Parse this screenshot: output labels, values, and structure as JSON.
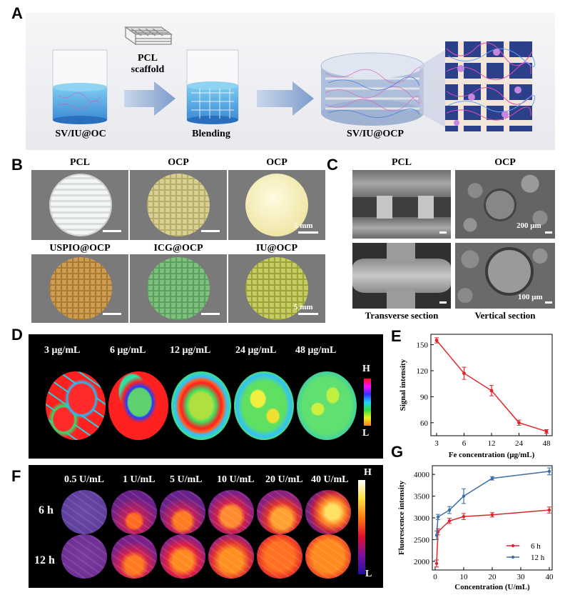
{
  "panels": {
    "A": {
      "label": "A",
      "scaffold_label_1": "PCL",
      "scaffold_label_2": "scaffold",
      "step1": "SV/IU@OC",
      "step2": "Blending",
      "step3": "SV/IU@OCP"
    },
    "B": {
      "label": "B",
      "titles": [
        "PCL",
        "OCP",
        "OCP",
        "USPIO@OCP",
        "ICG@OCP",
        "IU@OCP"
      ],
      "scale": "5 mm"
    },
    "C": {
      "label": "C",
      "col1": "PCL",
      "col2": "OCP",
      "scale_top": "200 μm",
      "scale_bottom": "100 μm",
      "caption1": "Transverse section",
      "caption2": "Vertical section"
    },
    "D": {
      "label": "D",
      "concentrations": [
        "3 μg/mL",
        "6 μg/mL",
        "12 μg/mL",
        "24 μg/mL",
        "48 μg/mL"
      ],
      "bar_high": "H",
      "bar_low": "L"
    },
    "F": {
      "label": "F",
      "concentrations": [
        "0.5 U/mL",
        "1 U/mL",
        "5 U/mL",
        "10 U/mL",
        "20 U/mL",
        "40 U/mL"
      ],
      "rows": [
        "6 h",
        "12 h"
      ],
      "bar_high": "H",
      "bar_low": "L"
    },
    "E": {
      "label": "E"
    },
    "G": {
      "label": "G"
    }
  },
  "chart_data": [
    {
      "id": "E",
      "type": "line",
      "x": [
        "3",
        "6",
        "12",
        "24",
        "48"
      ],
      "series": [
        {
          "values": [
            155,
            117,
            97,
            60,
            50
          ],
          "errors": [
            3,
            7,
            6,
            3,
            2
          ],
          "color": "#e0262b"
        }
      ],
      "xlabel": "Fe concentration (μg/mL)",
      "ylabel": "Signal intensity",
      "yticks": [
        60,
        90,
        120,
        150
      ],
      "ylim": [
        45,
        162
      ]
    },
    {
      "id": "G",
      "type": "line",
      "xticks": [
        0,
        10,
        20,
        30,
        40
      ],
      "xlim": [
        -1,
        41
      ],
      "ylim": [
        1800,
        4200
      ],
      "yticks": [
        2000,
        2500,
        3000,
        3500,
        4000
      ],
      "xlabel": "Concentration (U/mL)",
      "ylabel": "Fluorescence intensity",
      "legend_position": "bottom-right",
      "series": [
        {
          "name": "6 h",
          "color": "#e0262b",
          "x": [
            0.5,
            1,
            5,
            10,
            20,
            40
          ],
          "values": [
            1950,
            2680,
            2930,
            3030,
            3070,
            3180
          ],
          "errors": [
            80,
            70,
            60,
            70,
            50,
            70
          ]
        },
        {
          "name": "12 h",
          "color": "#3a6ea5",
          "x": [
            0.5,
            1,
            5,
            10,
            20,
            40
          ],
          "values": [
            2600,
            3020,
            3180,
            3500,
            3910,
            4070
          ],
          "errors": [
            100,
            60,
            80,
            170,
            40,
            80
          ]
        }
      ]
    }
  ]
}
